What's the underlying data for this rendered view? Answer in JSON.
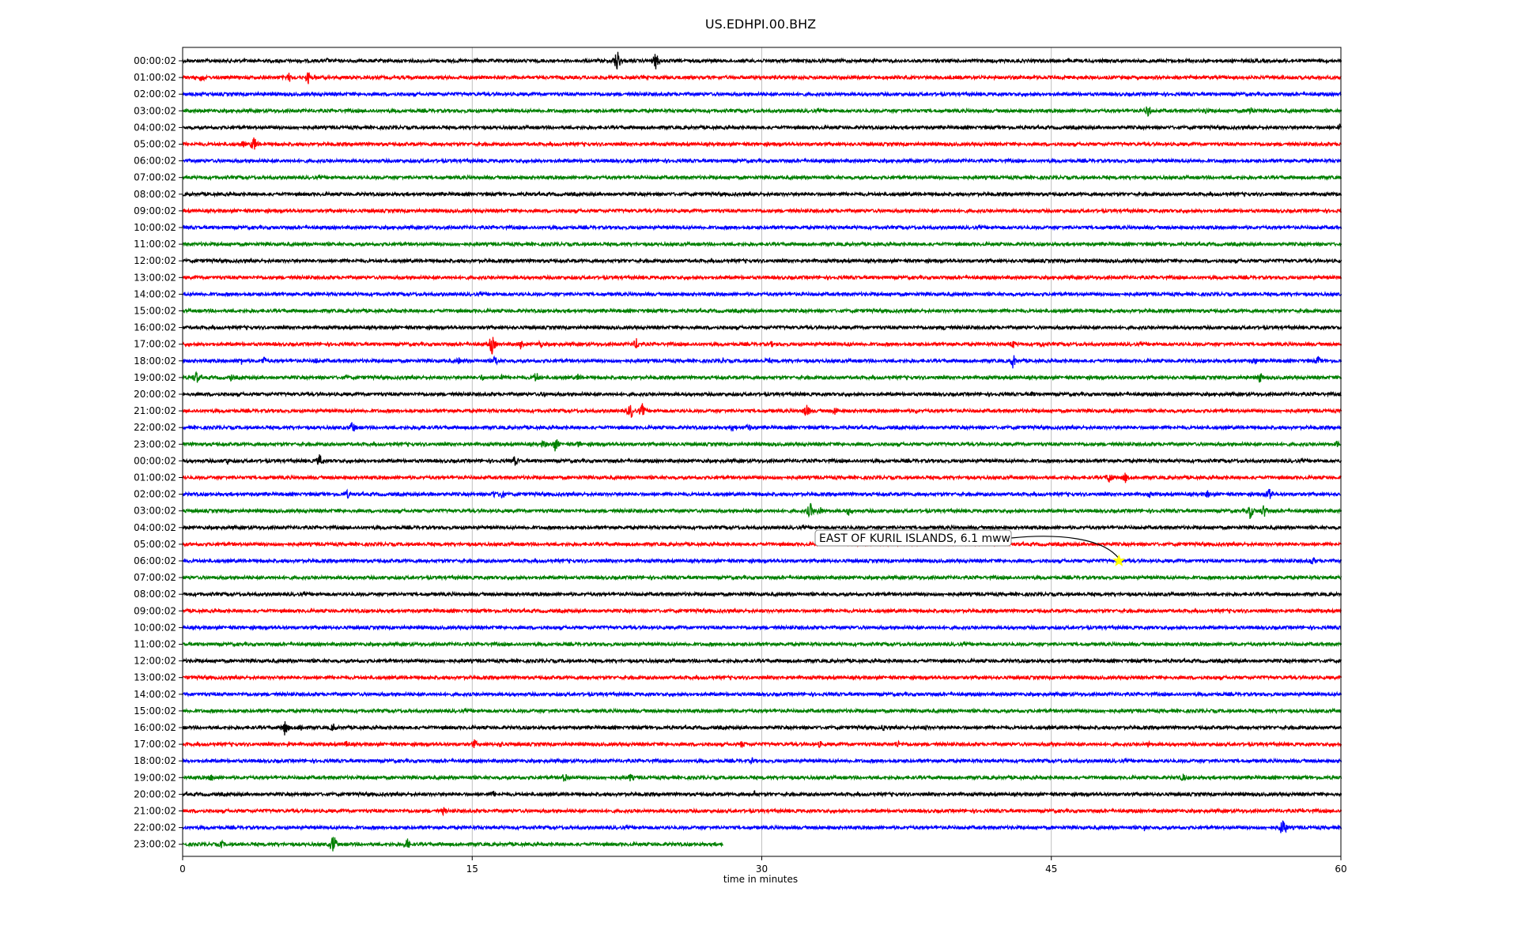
{
  "chart_data": {
    "type": "line",
    "title": "US.EDHPI.00.BHZ",
    "xlabel": "time in minutes",
    "ylabel": "",
    "xlim": [
      0,
      60
    ],
    "x_ticks": [
      "0",
      "15",
      "30",
      "45",
      "60"
    ],
    "grid": "vertical",
    "color_cycle": [
      "#000000",
      "#ff0000",
      "#0000ff",
      "#008000"
    ],
    "row_labels": [
      "00:00:02",
      "01:00:02",
      "02:00:02",
      "03:00:02",
      "04:00:02",
      "05:00:02",
      "06:00:02",
      "07:00:02",
      "08:00:02",
      "09:00:02",
      "10:00:02",
      "11:00:02",
      "12:00:02",
      "13:00:02",
      "14:00:02",
      "15:00:02",
      "16:00:02",
      "17:00:02",
      "18:00:02",
      "19:00:02",
      "20:00:02",
      "21:00:02",
      "22:00:02",
      "23:00:02",
      "00:00:02",
      "01:00:02",
      "02:00:02",
      "03:00:02",
      "04:00:02",
      "05:00:02",
      "06:00:02",
      "07:00:02",
      "08:00:02",
      "09:00:02",
      "10:00:02",
      "11:00:02",
      "12:00:02",
      "13:00:02",
      "14:00:02",
      "15:00:02",
      "16:00:02",
      "17:00:02",
      "18:00:02",
      "19:00:02",
      "20:00:02",
      "21:00:02",
      "22:00:02",
      "23:00:02"
    ],
    "last_trace_end_minute": 28,
    "annotation": {
      "text": "EAST OF KURIL ISLANDS, 6.1 mww",
      "row": 30,
      "minute": 48.5,
      "marker": "star",
      "marker_color": "#ffff00"
    },
    "events": [
      {
        "row": 0,
        "minute": 22.5,
        "amp": 16
      },
      {
        "row": 0,
        "minute": 24.5,
        "amp": 12
      },
      {
        "row": 0,
        "minute": 7.5,
        "amp": 4
      },
      {
        "row": 1,
        "minute": 1,
        "amp": 7
      },
      {
        "row": 1,
        "minute": 5.5,
        "amp": 7
      },
      {
        "row": 1,
        "minute": 6.5,
        "amp": 9
      },
      {
        "row": 3,
        "minute": 50,
        "amp": 9
      },
      {
        "row": 3,
        "minute": 53,
        "amp": 5
      },
      {
        "row": 3,
        "minute": 55.3,
        "amp": 8
      },
      {
        "row": 4,
        "minute": 59.9,
        "amp": 6
      },
      {
        "row": 5,
        "minute": 3.7,
        "amp": 11
      },
      {
        "row": 5,
        "minute": 3.1,
        "amp": 6
      },
      {
        "row": 16,
        "minute": 39.5,
        "amp": 5
      },
      {
        "row": 17,
        "minute": 16,
        "amp": 14
      },
      {
        "row": 17,
        "minute": 17.5,
        "amp": 7
      },
      {
        "row": 17,
        "minute": 18.5,
        "amp": 6
      },
      {
        "row": 17,
        "minute": 23.5,
        "amp": 8
      },
      {
        "row": 17,
        "minute": 30.5,
        "amp": 4
      },
      {
        "row": 17,
        "minute": 34.5,
        "amp": 4
      },
      {
        "row": 17,
        "minute": 43,
        "amp": 7
      },
      {
        "row": 17,
        "minute": 44.5,
        "amp": 5
      },
      {
        "row": 18,
        "minute": 3,
        "amp": 6
      },
      {
        "row": 18,
        "minute": 4.2,
        "amp": 7
      },
      {
        "row": 18,
        "minute": 6.9,
        "amp": 5
      },
      {
        "row": 18,
        "minute": 14.3,
        "amp": 5
      },
      {
        "row": 18,
        "minute": 16.2,
        "amp": 8
      },
      {
        "row": 18,
        "minute": 28,
        "amp": 5
      },
      {
        "row": 18,
        "minute": 30.3,
        "amp": 6
      },
      {
        "row": 18,
        "minute": 43,
        "amp": 10
      },
      {
        "row": 18,
        "minute": 55.5,
        "amp": 6
      },
      {
        "row": 18,
        "minute": 58.8,
        "amp": 7
      },
      {
        "row": 19,
        "minute": 0.7,
        "amp": 10
      },
      {
        "row": 19,
        "minute": 2.5,
        "amp": 5
      },
      {
        "row": 19,
        "minute": 8.5,
        "amp": 5
      },
      {
        "row": 19,
        "minute": 15.5,
        "amp": 5
      },
      {
        "row": 19,
        "minute": 16.5,
        "amp": 6
      },
      {
        "row": 19,
        "minute": 18.3,
        "amp": 9
      },
      {
        "row": 19,
        "minute": 20.5,
        "amp": 6
      },
      {
        "row": 19,
        "minute": 55.8,
        "amp": 8
      },
      {
        "row": 20,
        "minute": 18.7,
        "amp": 5
      },
      {
        "row": 20,
        "minute": 44,
        "amp": 4
      },
      {
        "row": 21,
        "minute": 23.2,
        "amp": 11
      },
      {
        "row": 21,
        "minute": 23.8,
        "amp": 10
      },
      {
        "row": 21,
        "minute": 32.3,
        "amp": 10
      },
      {
        "row": 21,
        "minute": 33.8,
        "amp": 7
      },
      {
        "row": 21,
        "minute": 38.0,
        "amp": 4
      },
      {
        "row": 22,
        "minute": 8.8,
        "amp": 9
      },
      {
        "row": 22,
        "minute": 12.3,
        "amp": 5
      },
      {
        "row": 22,
        "minute": 28.5,
        "amp": 6
      },
      {
        "row": 22,
        "minute": 29.3,
        "amp": 6
      },
      {
        "row": 23,
        "minute": 18.7,
        "amp": 6
      },
      {
        "row": 23,
        "minute": 19.3,
        "amp": 10
      },
      {
        "row": 23,
        "minute": 20.5,
        "amp": 5
      },
      {
        "row": 23,
        "minute": 59.8,
        "amp": 5
      },
      {
        "row": 24,
        "minute": 2.3,
        "amp": 6
      },
      {
        "row": 24,
        "minute": 7.1,
        "amp": 9
      },
      {
        "row": 24,
        "minute": 17.2,
        "amp": 8
      },
      {
        "row": 25,
        "minute": 48,
        "amp": 9
      },
      {
        "row": 25,
        "minute": 48.8,
        "amp": 8
      },
      {
        "row": 26,
        "minute": 8.5,
        "amp": 7
      },
      {
        "row": 26,
        "minute": 12.8,
        "amp": 5
      },
      {
        "row": 26,
        "minute": 16.1,
        "amp": 6
      },
      {
        "row": 26,
        "minute": 16.5,
        "amp": 8
      },
      {
        "row": 26,
        "minute": 50.1,
        "amp": 5
      },
      {
        "row": 26,
        "minute": 53.1,
        "amp": 6
      },
      {
        "row": 26,
        "minute": 56.3,
        "amp": 11
      },
      {
        "row": 27,
        "minute": 32.5,
        "amp": 11
      },
      {
        "row": 27,
        "minute": 33.0,
        "amp": 7
      },
      {
        "row": 27,
        "minute": 34.5,
        "amp": 7
      },
      {
        "row": 27,
        "minute": 55.3,
        "amp": 11
      },
      {
        "row": 27,
        "minute": 56.0,
        "amp": 9
      },
      {
        "row": 30,
        "minute": 58.5,
        "amp": 7
      },
      {
        "row": 40,
        "minute": 5.3,
        "amp": 11
      },
      {
        "row": 40,
        "minute": 6.1,
        "amp": 7
      },
      {
        "row": 40,
        "minute": 7.8,
        "amp": 7
      },
      {
        "row": 40,
        "minute": 36.3,
        "amp": 5
      },
      {
        "row": 40,
        "minute": 38.5,
        "amp": 4
      },
      {
        "row": 40,
        "minute": 44.8,
        "amp": 4
      },
      {
        "row": 40,
        "minute": 46.5,
        "amp": 4
      },
      {
        "row": 41,
        "minute": 5.5,
        "amp": 5
      },
      {
        "row": 41,
        "minute": 8.5,
        "amp": 6
      },
      {
        "row": 41,
        "minute": 15.1,
        "amp": 7
      },
      {
        "row": 41,
        "minute": 16.5,
        "amp": 5
      },
      {
        "row": 41,
        "minute": 29.0,
        "amp": 6
      },
      {
        "row": 41,
        "minute": 33.0,
        "amp": 5
      },
      {
        "row": 41,
        "minute": 37.0,
        "amp": 6
      },
      {
        "row": 41,
        "minute": 45.0,
        "amp": 5
      },
      {
        "row": 41,
        "minute": 50.0,
        "amp": 5
      },
      {
        "row": 42,
        "minute": 29.5,
        "amp": 5
      },
      {
        "row": 43,
        "minute": 1.5,
        "amp": 6
      },
      {
        "row": 43,
        "minute": 19.8,
        "amp": 8
      },
      {
        "row": 43,
        "minute": 23.2,
        "amp": 6
      },
      {
        "row": 43,
        "minute": 51.8,
        "amp": 6
      },
      {
        "row": 44,
        "minute": 16.1,
        "amp": 5
      },
      {
        "row": 44,
        "minute": 29.6,
        "amp": 5
      },
      {
        "row": 45,
        "minute": 13.5,
        "amp": 6
      },
      {
        "row": 45,
        "minute": 58.0,
        "amp": 4
      },
      {
        "row": 46,
        "minute": 49.8,
        "amp": 5
      },
      {
        "row": 46,
        "minute": 57.0,
        "amp": 14
      },
      {
        "row": 47,
        "minute": 2.0,
        "amp": 6
      },
      {
        "row": 47,
        "minute": 7.8,
        "amp": 14
      },
      {
        "row": 47,
        "minute": 11.6,
        "amp": 9
      }
    ]
  }
}
